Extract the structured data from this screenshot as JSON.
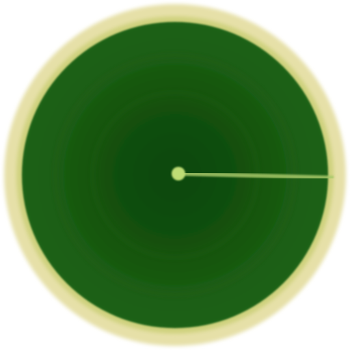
{
  "radar": {
    "icon": "radar-icon",
    "colors": {
      "bezel": "#e8e2a6",
      "bezel_inner": "#d4cf86",
      "screen": "#1c5e12",
      "screen_dark": "#0f4a0a",
      "ring": "#2a6c1e",
      "sweep": "#b9d67a",
      "center": "#c5e07a"
    },
    "sweep_direction": "right"
  }
}
